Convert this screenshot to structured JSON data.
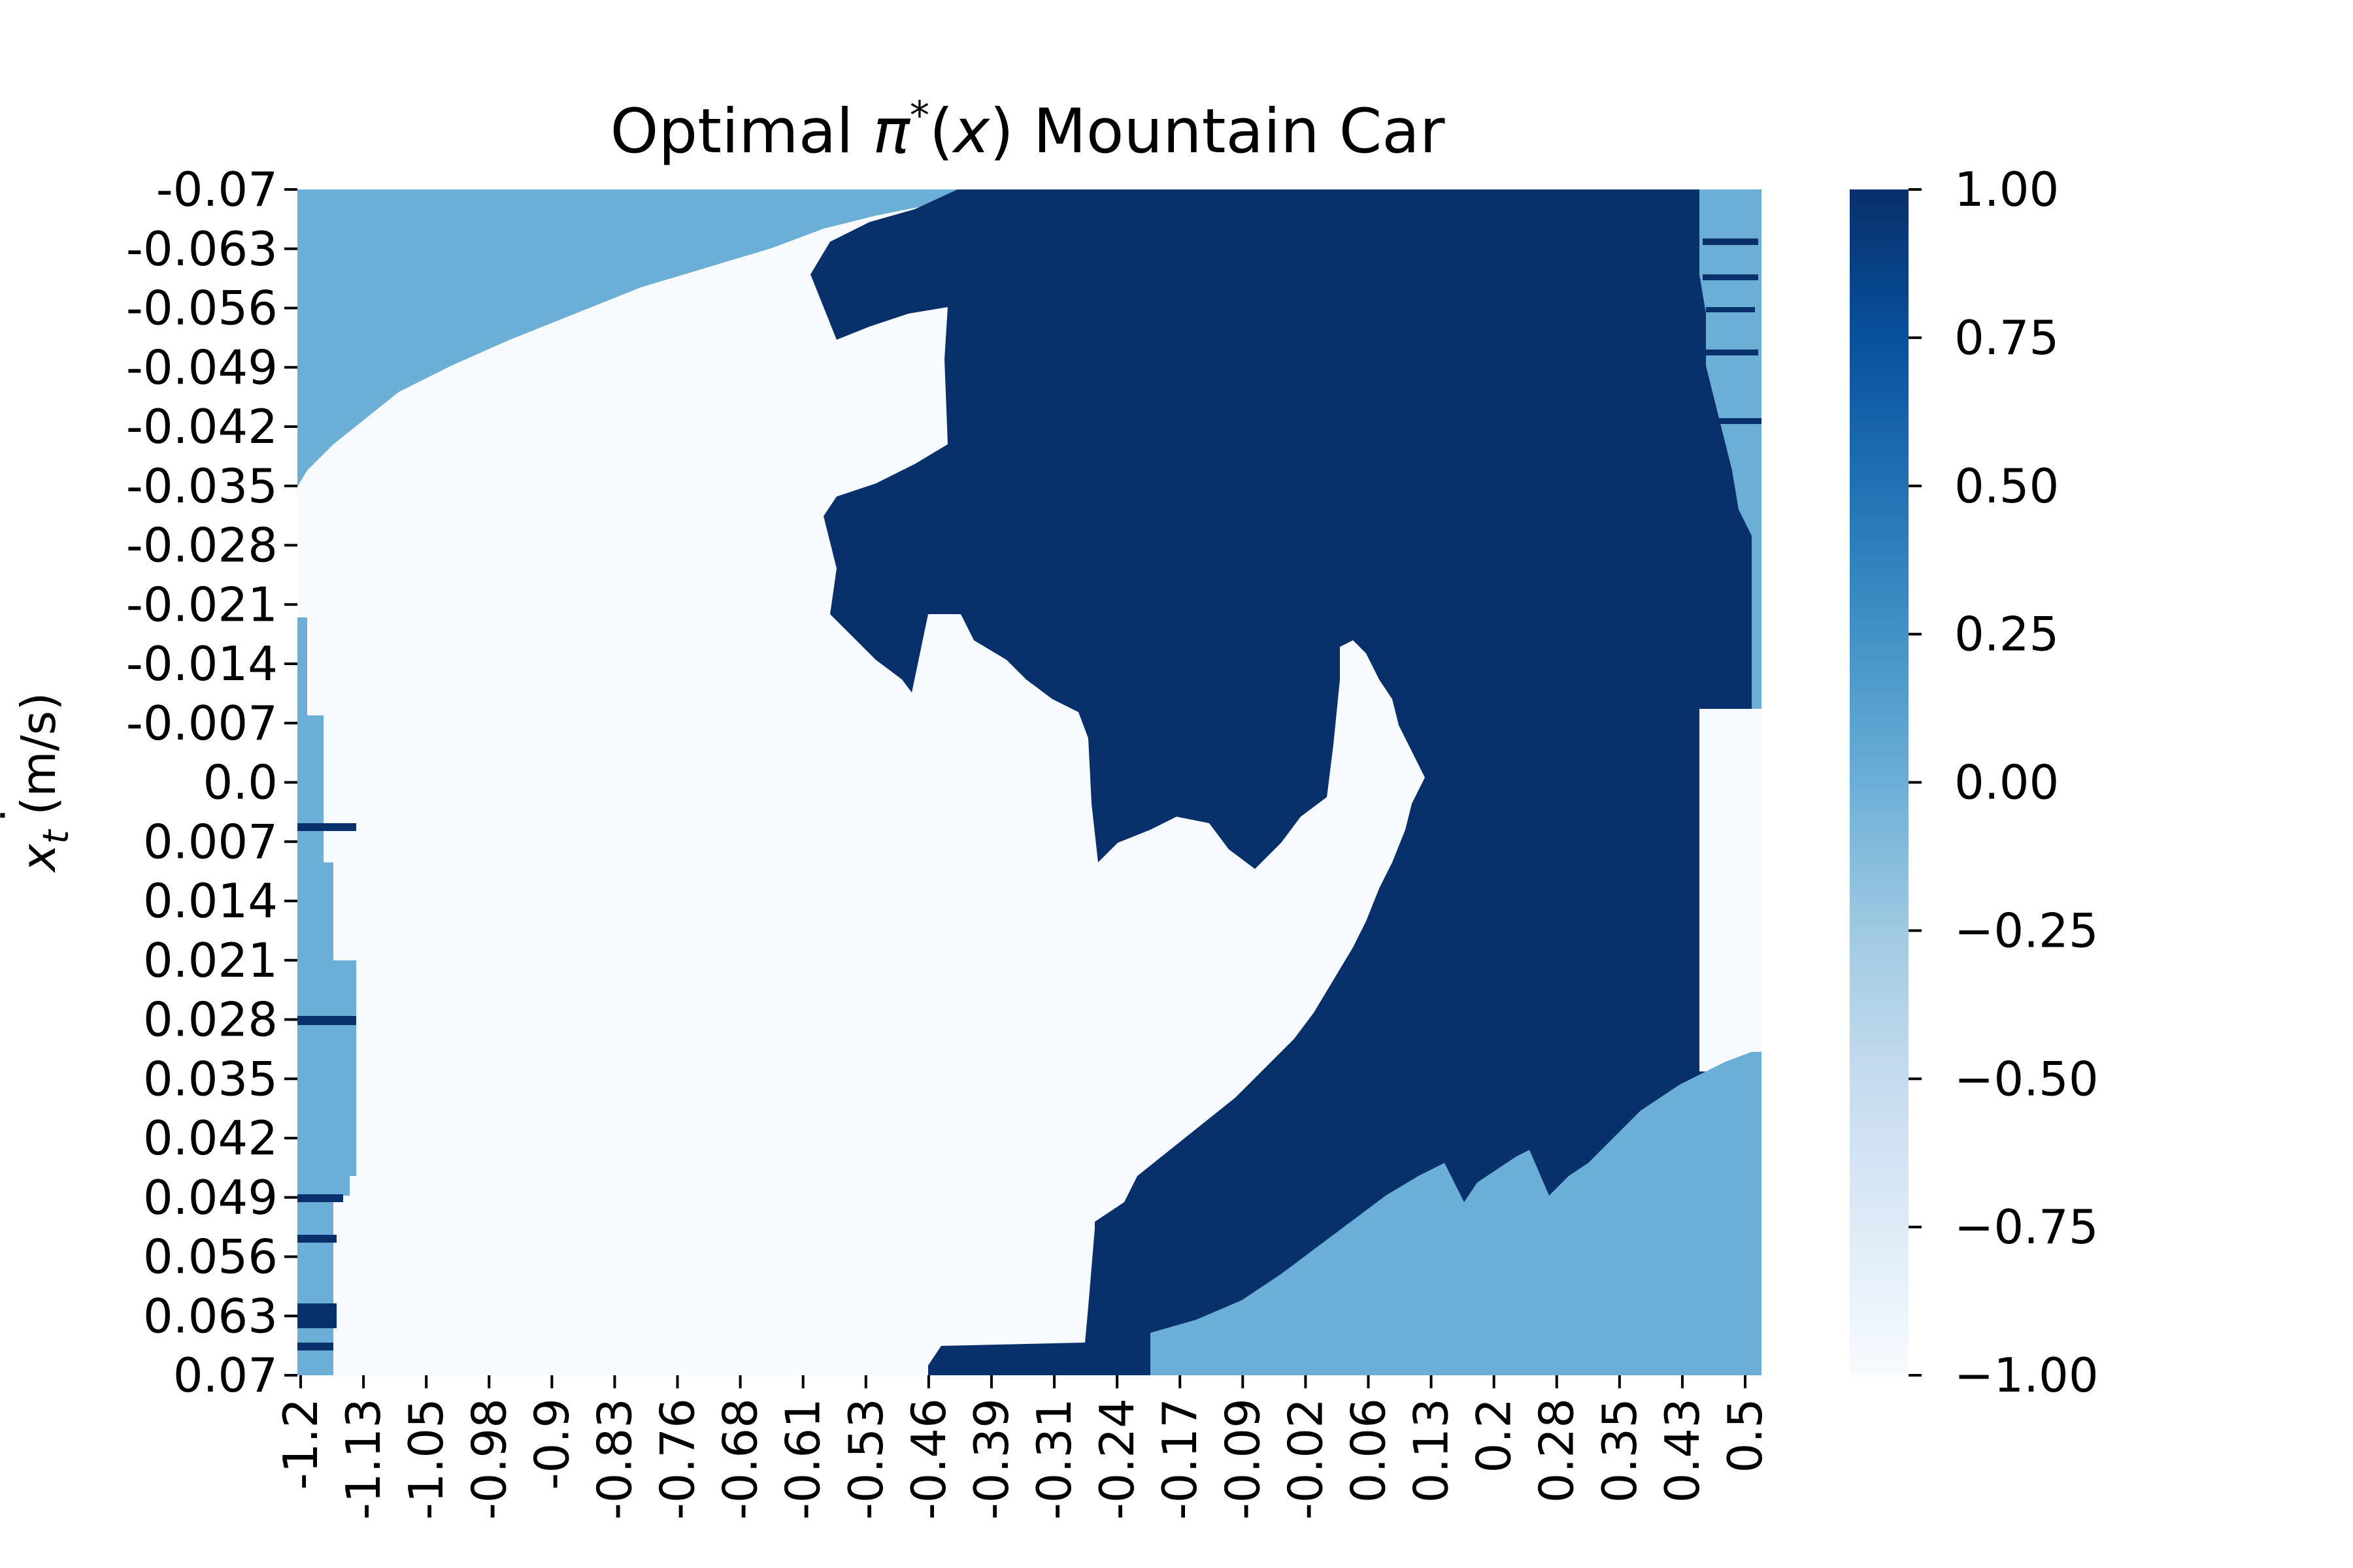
{
  "chart_data": {
    "type": "heatmap",
    "title_prefix": "Optimal ",
    "title_pi": "π",
    "title_star": "*",
    "title_open": "(",
    "title_var": "x",
    "title_close": ")",
    "title_suffix": " Mountain Car",
    "ylabel_var": "x",
    "ylabel_dot": "˙",
    "ylabel_sub": "t",
    "ylabel_unit": " (m/s)",
    "x_ticks": [
      "-1.2",
      "-1.13",
      "-1.05",
      "-0.98",
      "-0.9",
      "-0.83",
      "-0.76",
      "-0.68",
      "-0.61",
      "-0.53",
      "-0.46",
      "-0.39",
      "-0.31",
      "-0.24",
      "-0.17",
      "-0.09",
      "-0.02",
      "0.06",
      "0.13",
      "0.2",
      "0.28",
      "0.35",
      "0.43",
      "0.5"
    ],
    "y_ticks": [
      "-0.07",
      "-0.063",
      "-0.056",
      "-0.049",
      "-0.042",
      "-0.035",
      "-0.028",
      "-0.021",
      "-0.014",
      "-0.007",
      "0.0",
      "0.007",
      "0.014",
      "0.021",
      "0.028",
      "0.035",
      "0.042",
      "0.049",
      "0.056",
      "0.063",
      "0.07"
    ],
    "xlim": [
      -1.2,
      0.5
    ],
    "ylim": [
      -0.07,
      0.07
    ],
    "colorbar": {
      "range": [
        -1,
        1
      ],
      "ticks": [
        "1.00",
        "0.75",
        "0.50",
        "0.25",
        "0.00",
        "−0.25",
        "−0.50",
        "−0.75",
        "−1.00"
      ],
      "colormap": "Blues"
    },
    "actions": [
      -1,
      0,
      1
    ],
    "colors": {
      "minus1": "#f7fbff",
      "zero": "#6baed6",
      "plus1": "#08306b"
    },
    "regions": [
      {
        "action": 0,
        "position": [
          -1.2,
          -0.46
        ],
        "velocity": [
          -0.07,
          -0.04
        ],
        "note": "upper-left band"
      },
      {
        "action": 0,
        "position": [
          -1.2,
          -1.13
        ],
        "velocity": [
          -0.015,
          0.07
        ],
        "note": "left edge strip"
      },
      {
        "action": 1,
        "position": [
          -0.6,
          0.5
        ],
        "velocity": [
          -0.07,
          -0.01
        ],
        "note": "upper dark region"
      },
      {
        "action": 1,
        "position": [
          -0.27,
          0.5
        ],
        "velocity": [
          0.02,
          0.07
        ],
        "note": "lower right dark region"
      },
      {
        "action": 0,
        "position": [
          -0.15,
          0.5
        ],
        "velocity": [
          0.045,
          0.07
        ],
        "note": "lower right light band"
      },
      {
        "action": 0,
        "position": [
          0.46,
          0.5
        ],
        "velocity": [
          -0.07,
          -0.007
        ],
        "note": "right edge strip"
      }
    ]
  }
}
